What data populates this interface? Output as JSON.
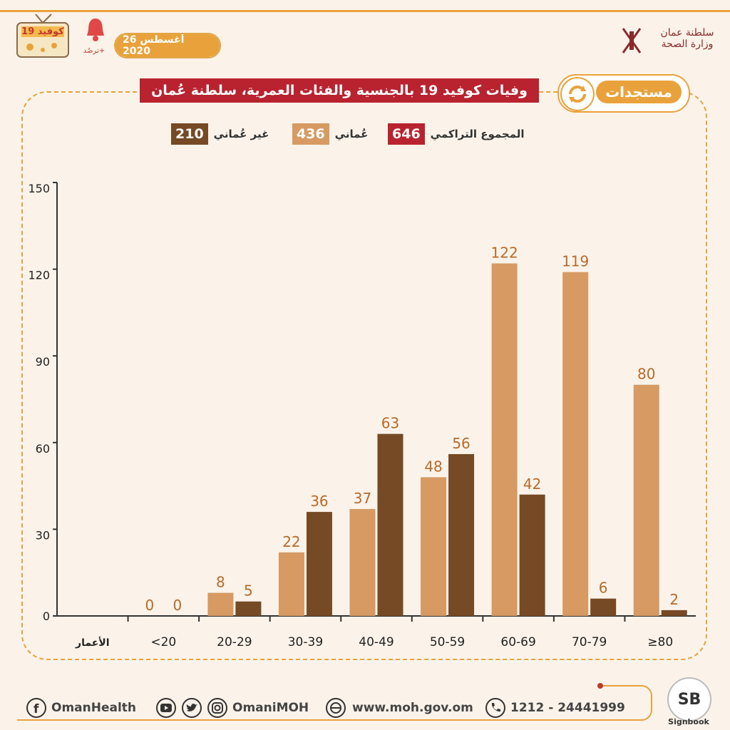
{
  "header": {
    "tv_title": "كوفيد 19",
    "bell_label": "ترصُد+",
    "date": "26 أغسطس 2020",
    "logo_text_line1": "سلطنة عمان",
    "logo_text_line2": "وزارة الصحة"
  },
  "banner": {
    "title": "وفيات كوفيد 19 بالجنسية والفئات العمرية، سلطنة عُمان",
    "update_label": "مستجدات"
  },
  "legend": {
    "total_label": "المجموع التراكمي",
    "total_value": "646",
    "omani_label": "عُماني",
    "omani_value": "436",
    "nonomani_label": "غير عُماني",
    "nonomani_value": "210"
  },
  "colors": {
    "total": "#b8232f",
    "omani": "#d69a62",
    "nonomani": "#764a24",
    "accent": "#e9a23b",
    "label_text": "#b86a28"
  },
  "chart_data": {
    "type": "bar",
    "xlabel": "الأعمار",
    "categories": [
      "<20",
      "20-29",
      "30-39",
      "40-49",
      "50-59",
      "60-69",
      "70-79",
      "≥80"
    ],
    "series": [
      {
        "name": "عُماني",
        "values": [
          0,
          8,
          22,
          37,
          48,
          122,
          119,
          80
        ]
      },
      {
        "name": "غير عُماني",
        "values": [
          0,
          5,
          36,
          63,
          56,
          42,
          6,
          2
        ]
      }
    ],
    "yticks": [
      "0",
      "30",
      "60",
      "90",
      "120",
      "150"
    ],
    "ylim": [
      0,
      150
    ],
    "grid": false
  },
  "footer": {
    "facebook": "OmanHealth",
    "social_handle": "OmaniMOH",
    "website": "www.moh.gov.om",
    "phone": "1212 - 24441999",
    "sb_text": "SB",
    "sb_label": "Signbook"
  }
}
